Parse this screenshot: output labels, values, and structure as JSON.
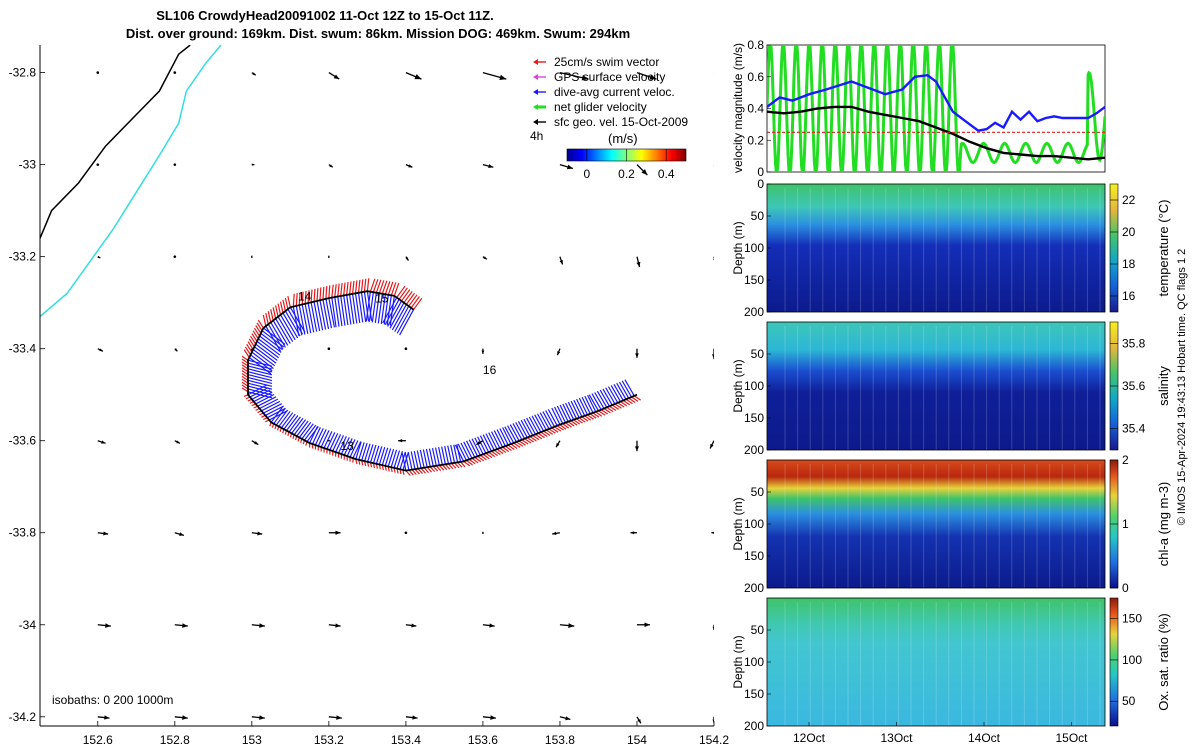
{
  "title": {
    "line1": "SL106 CrowdyHead20091002 11-Oct 12Z to 15-Oct 11Z.",
    "line2": "Dist. over ground: 169km. Dist. swum: 86km. Mission DOG: 469km. Swum: 294km"
  },
  "colors": {
    "swim": "#e41a1c",
    "gps": "#e040e0",
    "current": "#1a1aff",
    "net": "#22dd22",
    "geo": "#000000",
    "coast": "#000000",
    "iso200": "#33dddd"
  },
  "chart_data": [
    {
      "id": "map",
      "type": "scatter",
      "x_ticks": [
        "152.6",
        "152.8",
        "153",
        "153.2",
        "153.4",
        "153.6",
        "153.8",
        "154",
        "154.2"
      ],
      "y_ticks": [
        "-32.8",
        "-33",
        "-33.2",
        "-33.4",
        "-33.6",
        "-33.8",
        "-34",
        "-34.2"
      ],
      "xlim": [
        152.45,
        154.2
      ],
      "ylim": [
        -34.22,
        -32.74
      ],
      "legend": {
        "placement": "top-right",
        "entries": [
          {
            "label": "25cm/s swim vector",
            "color": "#e41a1c"
          },
          {
            "label": "GPS surface velocity",
            "color": "#e040e0"
          },
          {
            "label": "dive-avg current veloc.",
            "color": "#1a1aff"
          },
          {
            "label": "net glider velocity",
            "color": "#22dd22"
          },
          {
            "label": "sfc geo. vel. 15-Oct-2009",
            "color": "#000000"
          }
        ]
      },
      "colorbar": {
        "unit": "(m/s)",
        "ticks": [
          "0",
          "0.2",
          "0.4"
        ],
        "range": [
          -0.1,
          0.5
        ]
      },
      "time_scale_label": "4h",
      "isobath_label": "isobaths: 0   200  1000m",
      "day_labels": [
        {
          "text": "13",
          "lon": 153.23,
          "lat": -33.62
        },
        {
          "text": "14",
          "lon": 153.12,
          "lat": -33.295
        },
        {
          "text": "15",
          "lon": 153.32,
          "lat": -33.3
        },
        {
          "text": "16",
          "lon": 153.6,
          "lat": -33.455
        }
      ],
      "track": [
        [
          153.42,
          -33.315
        ],
        [
          153.37,
          -33.285
        ],
        [
          153.3,
          -33.275
        ],
        [
          153.2,
          -33.29
        ],
        [
          153.1,
          -33.31
        ],
        [
          153.03,
          -33.355
        ],
        [
          152.99,
          -33.425
        ],
        [
          152.99,
          -33.5
        ],
        [
          153.05,
          -33.56
        ],
        [
          153.15,
          -33.605
        ],
        [
          153.27,
          -33.64
        ],
        [
          153.4,
          -33.665
        ],
        [
          153.55,
          -33.645
        ],
        [
          153.68,
          -33.605
        ],
        [
          153.8,
          -33.565
        ],
        [
          153.9,
          -33.535
        ],
        [
          154.0,
          -33.5
        ]
      ],
      "coastline": [
        [
          152.45,
          -33.16
        ],
        [
          152.48,
          -33.1
        ],
        [
          152.55,
          -33.04
        ],
        [
          152.62,
          -32.96
        ],
        [
          152.69,
          -32.9
        ],
        [
          152.76,
          -32.84
        ],
        [
          152.81,
          -32.76
        ],
        [
          152.84,
          -32.74
        ]
      ],
      "isobath_200": [
        [
          152.45,
          -33.33
        ],
        [
          152.52,
          -33.28
        ],
        [
          152.58,
          -33.21
        ],
        [
          152.64,
          -33.14
        ],
        [
          152.7,
          -33.06
        ],
        [
          152.76,
          -32.98
        ],
        [
          152.81,
          -32.91
        ],
        [
          152.83,
          -32.84
        ],
        [
          152.88,
          -32.78
        ],
        [
          152.92,
          -32.74
        ]
      ],
      "geo_vectors": {
        "lons": [
          152.6,
          152.8,
          153.0,
          153.2,
          153.4,
          153.6,
          153.8,
          154.0,
          154.2
        ],
        "lats": [
          -32.8,
          -33.0,
          -33.2,
          -33.4,
          -33.6,
          -33.8,
          -34.0,
          -34.2
        ],
        "u": [
          [
            0.0,
            0.0,
            0.03,
            0.08,
            0.12,
            0.18,
            0.22,
            0.15,
            0.06
          ],
          [
            0.0,
            0.0,
            0.02,
            0.03,
            0.05,
            0.08,
            0.1,
            0.08,
            0.02
          ],
          [
            0.02,
            0.0,
            0.0,
            0.0,
            0.02,
            0.03,
            0.02,
            0.02,
            0.01
          ],
          [
            0.04,
            0.02,
            0.0,
            0.0,
            0.0,
            0.0,
            -0.02,
            0.0,
            0.0
          ],
          [
            0.06,
            0.04,
            0.05,
            -0.01,
            -0.06,
            -0.05,
            -0.03,
            0.0,
            -0.03
          ],
          [
            0.08,
            0.07,
            0.08,
            0.09,
            0.0,
            0.0,
            -0.06,
            -0.05,
            -0.02
          ],
          [
            0.1,
            0.1,
            0.1,
            0.09,
            0.08,
            0.09,
            0.11,
            0.1,
            0.0
          ],
          [
            0.09,
            0.1,
            0.1,
            0.1,
            0.09,
            0.1,
            0.08,
            0.03,
            0.0
          ]
        ],
        "v": [
          [
            0.0,
            0.0,
            0.02,
            0.05,
            0.05,
            0.05,
            0.05,
            0.05,
            0.02
          ],
          [
            0.0,
            0.0,
            0.0,
            0.02,
            0.02,
            0.02,
            0.03,
            0.08,
            0.01
          ],
          [
            0.01,
            0.0,
            0.01,
            0.01,
            0.03,
            0.02,
            0.06,
            0.08,
            0.04
          ],
          [
            0.02,
            0.02,
            0.02,
            0.0,
            0.0,
            0.04,
            0.05,
            0.07,
            0.08
          ],
          [
            0.02,
            0.02,
            0.03,
            0.0,
            0.0,
            0.03,
            0.05,
            0.08,
            0.06
          ],
          [
            0.01,
            0.02,
            0.01,
            0.0,
            0.0,
            0.01,
            0.01,
            0.0,
            0.0
          ],
          [
            0.01,
            0.01,
            0.01,
            0.01,
            0.01,
            0.01,
            0.01,
            0.0,
            0.04
          ],
          [
            0.01,
            0.01,
            0.01,
            0.01,
            0.01,
            0.01,
            0.02,
            0.05,
            0.05
          ]
        ]
      }
    },
    {
      "id": "velocity",
      "type": "line",
      "ylabel": "velocity magnitude (m/s)",
      "ylim": [
        0,
        0.8
      ],
      "y_ticks": [
        "0",
        "0.2",
        "0.4",
        "0.6",
        "0.8"
      ],
      "xlim": [
        0,
        4
      ],
      "series": [
        {
          "name": "dive-avg current veloc.",
          "color": "#1a1aff",
          "x": [
            0,
            0.15,
            0.3,
            0.5,
            0.7,
            1.0,
            1.2,
            1.4,
            1.6,
            1.75,
            1.9,
            2.0,
            2.2,
            2.4,
            2.5,
            2.6,
            2.7,
            2.8,
            2.9,
            3.0,
            3.1,
            3.2,
            3.3,
            3.4,
            3.5,
            3.6,
            3.7,
            3.8,
            3.9,
            4.0
          ],
          "y": [
            0.41,
            0.47,
            0.45,
            0.49,
            0.52,
            0.57,
            0.53,
            0.49,
            0.52,
            0.6,
            0.61,
            0.57,
            0.38,
            0.3,
            0.26,
            0.27,
            0.31,
            0.28,
            0.38,
            0.33,
            0.38,
            0.32,
            0.34,
            0.35,
            0.34,
            0.34,
            0.34,
            0.34,
            0.37,
            0.41
          ]
        },
        {
          "name": "net glider velocity",
          "color": "#000000",
          "x": [
            0,
            0.2,
            0.4,
            0.6,
            0.8,
            1.0,
            1.2,
            1.4,
            1.6,
            1.8,
            2.0,
            2.2,
            2.4,
            2.6,
            2.8,
            3.0,
            3.2,
            3.4,
            3.6,
            3.8,
            4.0
          ],
          "y": [
            0.38,
            0.37,
            0.38,
            0.4,
            0.41,
            0.41,
            0.38,
            0.36,
            0.34,
            0.32,
            0.28,
            0.24,
            0.19,
            0.15,
            0.12,
            0.11,
            0.1,
            0.1,
            0.09,
            0.08,
            0.09
          ]
        },
        {
          "name": "25cm/s swim vector",
          "color": "#e41a1c",
          "x": [
            0,
            4
          ],
          "y": [
            0.25,
            0.25
          ]
        }
      ]
    },
    {
      "id": "temperature",
      "type": "heatmap",
      "ylabel": "Depth (m)",
      "y_ticks": [
        "0",
        "50",
        "100",
        "150",
        "200"
      ],
      "colorbar_label": "temperature (°C)",
      "colorbar_ticks": [
        "16",
        "18",
        "20",
        "22"
      ],
      "range": [
        15,
        23
      ]
    },
    {
      "id": "salinity",
      "type": "heatmap",
      "ylabel": "Depth (m)",
      "y_ticks": [
        "50",
        "100",
        "150",
        "200"
      ],
      "colorbar_label": "salinity",
      "colorbar_ticks": [
        "35.4",
        "35.6",
        "35.8"
      ],
      "range": [
        35.3,
        35.9
      ]
    },
    {
      "id": "chla",
      "type": "heatmap",
      "ylabel": "Depth (m)",
      "y_ticks": [
        "50",
        "100",
        "150",
        "200"
      ],
      "colorbar_label": "chl-a (mg m-3)",
      "colorbar_ticks": [
        "0",
        "1",
        "2"
      ],
      "range": [
        0,
        2
      ]
    },
    {
      "id": "oxygen",
      "type": "heatmap",
      "ylabel": "Depth (m)",
      "y_ticks": [
        "50",
        "100",
        "150",
        "200"
      ],
      "x_ticks": [
        "12Oct",
        "13Oct",
        "14Oct",
        "15Oct"
      ],
      "colorbar_label": "Ox. sat. ratio (%)",
      "colorbar_ticks": [
        "50",
        "100",
        "150"
      ],
      "range": [
        20,
        175
      ]
    }
  ],
  "footer": "© IMOS 15-Apr-2024 19:43:13 Hobart time. QC flags 1  2"
}
